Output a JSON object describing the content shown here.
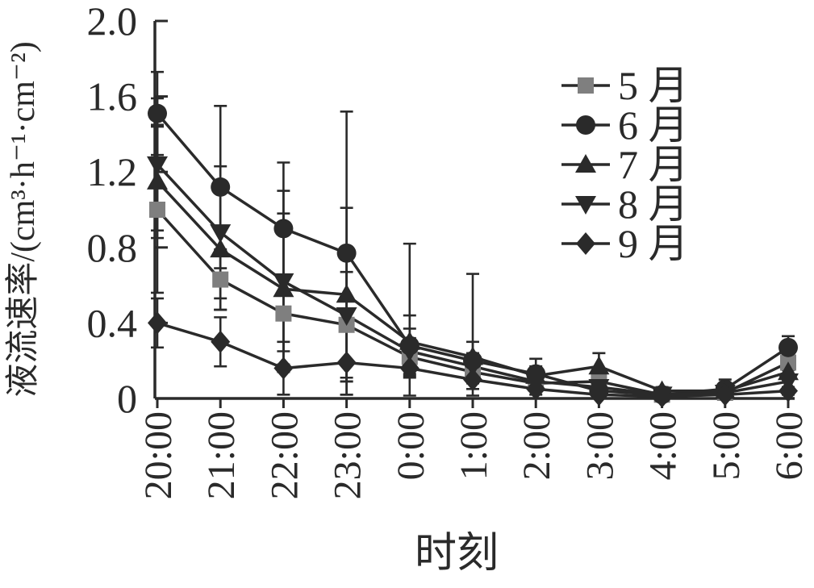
{
  "figure": {
    "y_axis_title": "液流速率/(cm³·h⁻¹·cm⁻²)",
    "x_axis_title": "时刻"
  },
  "chart_data": {
    "type": "line",
    "title": "",
    "xlabel": "时刻",
    "ylabel": "液流速率/(cm³·h⁻¹·cm⁻²)",
    "categories": [
      "20:00",
      "21:00",
      "22:00",
      "23:00",
      "0:00",
      "1:00",
      "2:00",
      "3:00",
      "4:00",
      "5:00",
      "6:00"
    ],
    "ylim": [
      0,
      2.0
    ],
    "ytick_labels": [
      "0",
      "0.4",
      "0.8",
      "1.2",
      "1.6",
      "2.0"
    ],
    "ytick_values": [
      0,
      0.4,
      0.8,
      1.2,
      1.6,
      2.0
    ],
    "grid": false,
    "legend_position": "upper-right-inside",
    "has_error_bars": true,
    "line_color": "#2a2a2a",
    "series": [
      {
        "name": "5 月",
        "marker": "square",
        "marker_color": "#7f7f7f",
        "values": [
          1.0,
          0.63,
          0.45,
          0.39,
          0.22,
          0.14,
          0.08,
          0.09,
          0.02,
          0.03,
          0.19
        ],
        "errors": [
          0.44,
          0.16,
          0.2,
          0.28,
          0.1,
          0.06,
          0.04,
          0.03,
          0.01,
          0.02,
          0.04
        ]
      },
      {
        "name": "6 月",
        "marker": "circle",
        "marker_color": "#2a2a2a",
        "values": [
          1.51,
          1.12,
          0.9,
          0.77,
          0.28,
          0.2,
          0.13,
          0.04,
          0.02,
          0.05,
          0.27
        ],
        "errors": [
          0.22,
          0.43,
          0.35,
          0.75,
          0.54,
          0.46,
          0.08,
          0.02,
          0.01,
          0.05,
          0.06
        ]
      },
      {
        "name": "7 月",
        "marker": "triangle-up",
        "marker_color": "#2a2a2a",
        "values": [
          1.15,
          0.79,
          0.58,
          0.55,
          0.3,
          0.22,
          0.12,
          0.17,
          0.04,
          0.04,
          0.14
        ],
        "errors": [
          0.3,
          0.32,
          0.4,
          0.46,
          0.14,
          0.08,
          0.05,
          0.07,
          0.02,
          0.02,
          0.04
        ]
      },
      {
        "name": "8 月",
        "marker": "triangle-down",
        "marker_color": "#2a2a2a",
        "values": [
          1.24,
          0.88,
          0.62,
          0.44,
          0.25,
          0.17,
          0.09,
          0.06,
          0.02,
          0.03,
          0.09
        ],
        "errors": [
          0.35,
          0.35,
          0.48,
          0.35,
          0.12,
          0.07,
          0.05,
          0.02,
          0.01,
          0.02,
          0.03
        ]
      },
      {
        "name": "9 月",
        "marker": "diamond",
        "marker_color": "#2a2a2a",
        "values": [
          0.4,
          0.3,
          0.16,
          0.19,
          0.16,
          0.1,
          0.05,
          0.02,
          0.01,
          0.02,
          0.04
        ],
        "errors": [
          0.13,
          0.13,
          0.14,
          0.17,
          0.05,
          0.05,
          0.03,
          0.01,
          0.01,
          0.01,
          0.02
        ]
      }
    ]
  }
}
